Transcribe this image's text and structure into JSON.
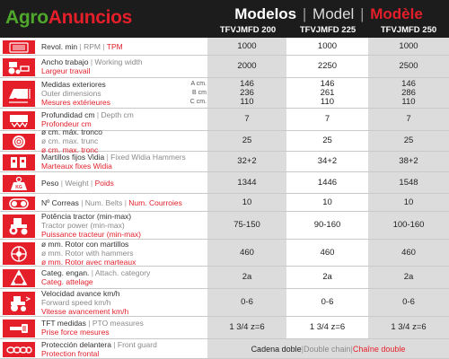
{
  "logo": {
    "part1": "Agro",
    "part2": "Anuncios"
  },
  "title": {
    "es": "Modelos",
    "sep1": "|",
    "en": "Model",
    "sep2": "|",
    "fr": "Modèle"
  },
  "models": [
    "TFVJMFD 200",
    "TFVJMFD 225",
    "TFVJMFD 250"
  ],
  "colors": {
    "red": "#e41f2a",
    "green": "#4fa82b",
    "dark": "#1c1c1c",
    "grey": "#dcdcdc"
  },
  "rows": [
    {
      "icon": "gauge-icon",
      "es": "Revol. min",
      "en": "RPM",
      "fr": "TPM",
      "layout": "inline",
      "values": [
        "1000",
        "1000",
        "1000"
      ]
    },
    {
      "icon": "tractor-width-icon",
      "es": "Ancho trabajo",
      "en": "Working width",
      "fr": "Largeur travail",
      "layout": "two",
      "values": [
        "2000",
        "2250",
        "2500"
      ]
    },
    {
      "icon": "machine-dimensions-icon",
      "es": "Medidas exteriores",
      "en": "Outer dimensions",
      "fr": "Mesures extérieures",
      "layout": "three",
      "units": [
        "A cm.",
        "B cm",
        "C cm."
      ],
      "values": [
        [
          "146",
          "236",
          "110"
        ],
        [
          "146",
          "261",
          "110"
        ],
        [
          "146",
          "286",
          "110"
        ]
      ]
    },
    {
      "icon": "depth-icon",
      "es": "Profundidad cm",
      "en": "Depth cm",
      "fr": "Profondeur cm",
      "layout": "two",
      "values": [
        "7",
        "7",
        "7"
      ]
    },
    {
      "icon": "trunk-icon",
      "es": "ø cm. máx. tronco",
      "en": "ø cm. max. trunc",
      "fr": "ø cm. max. tronc",
      "layout": "three",
      "values": [
        "25",
        "25",
        "25"
      ]
    },
    {
      "icon": "hammer-icon",
      "es": "Martillos fijos Vidia",
      "en": "Fixed Widia Hammers",
      "fr": "Marteaux fixes Widia",
      "layout": "two",
      "values": [
        "32+2",
        "34+2",
        "38+2"
      ]
    },
    {
      "icon": "weight-icon",
      "es": "Peso",
      "en": "Weight",
      "fr": "Poids",
      "layout": "inline",
      "values": [
        "1344",
        "1446",
        "1548"
      ]
    },
    {
      "icon": "belt-icon",
      "es": "Nº Correas",
      "en": "Num. Belts",
      "fr": "Num. Courroies",
      "layout": "inline",
      "values": [
        "10",
        "10",
        "10"
      ]
    },
    {
      "icon": "tractor-power-icon",
      "es": "Potência tractor (min-max)",
      "en": "Tractor power (min-max)",
      "fr": "Puissance tracteur (min-max)",
      "layout": "three",
      "values": [
        "75-150",
        "90-160",
        "100-160"
      ]
    },
    {
      "icon": "rotor-icon",
      "es": "ø mm. Rotor con martillos",
      "en": "ø mm. Rotor with hammers",
      "fr": "ø mm. Rotor avec marteaux",
      "layout": "three",
      "values": [
        "460",
        "460",
        "460"
      ]
    },
    {
      "icon": "hitch-icon",
      "es": "Categ. engan.",
      "en": "Attach. category",
      "fr": "Categ. attelage",
      "layout": "two",
      "values": [
        "2a",
        "2a",
        "2a"
      ]
    },
    {
      "icon": "speed-icon",
      "es": "Velocidad avance km/h",
      "en": "Forward speed km/h",
      "fr": "Vitesse avancement km/h",
      "layout": "three",
      "values": [
        "0-6",
        "0-6",
        "0-6"
      ]
    },
    {
      "icon": "pto-icon",
      "es": "TFT medidas",
      "en": "PTO measures",
      "fr": "Prise force mesures",
      "layout": "two",
      "values": [
        "1 3/4 z=6",
        "1 3/4 z=6",
        "1 3/4 z=6"
      ]
    },
    {
      "icon": "chain-icon",
      "es": "Protección delantera",
      "en": "Front guard",
      "fr": "Protection frontal",
      "layout": "two",
      "span": {
        "es": "Cadena doble",
        "en": "Double chain",
        "fr": "Chaîne double"
      }
    }
  ]
}
